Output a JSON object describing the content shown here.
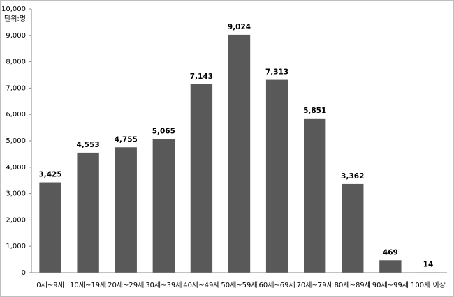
{
  "chart_data": {
    "type": "bar",
    "annotation": "단위:명",
    "categories": [
      "0세~9세",
      "10세~19세",
      "20세~29세",
      "30세~39세",
      "40세~49세",
      "50세~59세",
      "60세~69세",
      "70세~79세",
      "80세~89세",
      "90세~99세",
      "100세 이상"
    ],
    "values": [
      3425,
      4553,
      4755,
      5065,
      7143,
      9024,
      7313,
      5851,
      3362,
      469,
      14
    ],
    "value_labels": [
      "3,425",
      "4,553",
      "4,755",
      "5,065",
      "7,143",
      "9,024",
      "7,313",
      "5,851",
      "3,362",
      "469",
      "14"
    ],
    "color": "#595959",
    "ylim": [
      0,
      10000
    ],
    "yticks": [
      0,
      {
        "value": 1000,
        "label": "1,000"
      },
      {
        "value": 2000,
        "label": "2,000"
      },
      {
        "value": 3000,
        "label": "3,000"
      },
      {
        "value": 4000,
        "label": "4,000"
      },
      {
        "value": 5000,
        "label": "5,000"
      },
      {
        "value": 6000,
        "label": "6,000"
      },
      {
        "value": 7000,
        "label": "7,000"
      },
      {
        "value": 8000,
        "label": "8,000"
      },
      {
        "value": 9000,
        "label": "9,000"
      },
      {
        "value": 10000,
        "label": "10,000"
      }
    ],
    "grid": false
  }
}
